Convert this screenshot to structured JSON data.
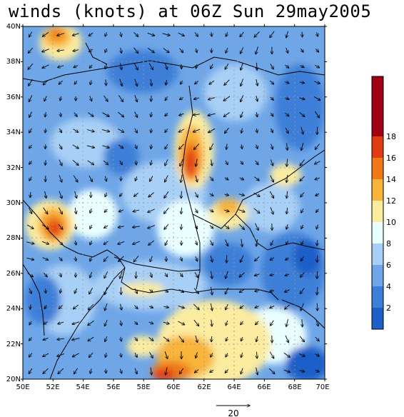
{
  "title": "winds (knots) at 06Z Sun 29may2005",
  "map": {
    "lat_labels": [
      "20N",
      "22N",
      "24N",
      "26N",
      "28N",
      "30N",
      "32N",
      "34N",
      "36N",
      "38N",
      "40N"
    ],
    "lon_labels": [
      "50E",
      "52E",
      "54E",
      "56E",
      "58E",
      "60E",
      "62E",
      "64E",
      "66E",
      "68E",
      "70E"
    ],
    "lat_range": [
      20,
      40
    ],
    "lon_range": [
      50,
      70
    ],
    "variable": "wind speed",
    "units": "knots",
    "gridlines": true
  },
  "colorbar": {
    "labels": [
      "2",
      "4",
      "6",
      "8",
      "10",
      "12",
      "14",
      "16",
      "18"
    ],
    "colors": [
      "#1f5fc8",
      "#3c7fd8",
      "#6ea6e8",
      "#a8cff5",
      "#eaffff",
      "#fbeca0",
      "#f8b43a",
      "#f07818",
      "#e03c14",
      "#a00014"
    ]
  },
  "vector_reference": {
    "label": "20",
    "magnitude": 20
  }
}
